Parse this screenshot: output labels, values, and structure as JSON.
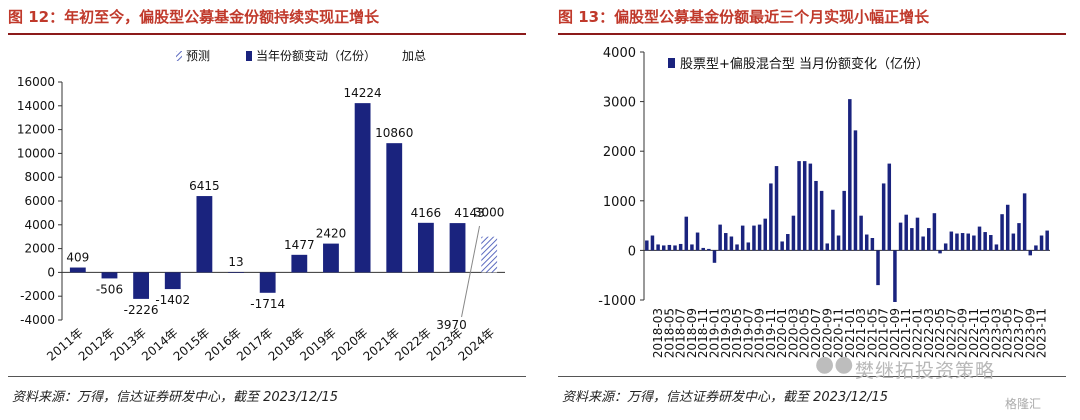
{
  "left": {
    "title": "图 12：年初至今，偏股型公募基金份额持续实现正增长",
    "source": "资料来源：万得，信达证券研发中心，截至 2023/12/15",
    "chart_data": {
      "type": "bar",
      "legend": [
        "预测",
        "当年份额变动（亿份）",
        "加总"
      ],
      "legend_position": "top",
      "categories": [
        "2011年",
        "2012年",
        "2013年",
        "2014年",
        "2015年",
        "2016年",
        "2017年",
        "2018年",
        "2019年",
        "2020年",
        "2021年",
        "2022年",
        "2023年",
        "2024年"
      ],
      "values": [
        409,
        -506,
        -2226,
        -1402,
        6415,
        13,
        -1714,
        1477,
        2420,
        14224,
        10860,
        4166,
        4143,
        3000
      ],
      "labels": [
        "409",
        "-506",
        "-2226",
        "-1402",
        "6415",
        "13",
        "-1714",
        "1477",
        "2420",
        "14224",
        "10860",
        "4166",
        "4143",
        "3000"
      ],
      "forecast_index": 13,
      "annotation": {
        "text": "3970",
        "category": "2023年"
      },
      "ylim": [
        -4000,
        16000
      ],
      "yticks": [
        -4000,
        -2000,
        0,
        2000,
        4000,
        6000,
        8000,
        10000,
        12000,
        14000,
        16000
      ],
      "grid": false,
      "colors": {
        "bar": "#1a237e",
        "forecast": "#5c6bc0"
      }
    }
  },
  "right": {
    "title": "图 13：偏股型公募基金份额最近三个月实现小幅正增长",
    "source": "资料来源：万得，信达证券研发中心，截至 2023/12/15",
    "chart_data": {
      "type": "bar",
      "legend": [
        "股票型+偏股混合型 当月份额变化（亿份）"
      ],
      "legend_position": "top-left",
      "categories": [
        "2018-01",
        "2018-02",
        "2018-03",
        "2018-04",
        "2018-05",
        "2018-06",
        "2018-07",
        "2018-08",
        "2018-09",
        "2018-10",
        "2018-11",
        "2018-12",
        "2019-01",
        "2019-02",
        "2019-03",
        "2019-04",
        "2019-05",
        "2019-06",
        "2019-07",
        "2019-08",
        "2019-09",
        "2019-10",
        "2019-11",
        "2019-12",
        "2020-01",
        "2020-02",
        "2020-03",
        "2020-04",
        "2020-05",
        "2020-06",
        "2020-07",
        "2020-08",
        "2020-09",
        "2020-10",
        "2020-11",
        "2020-12",
        "2021-01",
        "2021-02",
        "2021-03",
        "2021-04",
        "2021-05",
        "2021-06",
        "2021-07",
        "2021-08",
        "2021-09",
        "2021-10",
        "2021-11",
        "2021-12",
        "2022-01",
        "2022-02",
        "2022-03",
        "2022-04",
        "2022-05",
        "2022-06",
        "2022-07",
        "2022-08",
        "2022-09",
        "2022-10",
        "2022-11",
        "2022-12",
        "2023-01",
        "2023-02",
        "2023-03",
        "2023-04",
        "2023-05",
        "2023-06",
        "2023-07",
        "2023-08",
        "2023-09",
        "2023-10",
        "2023-11",
        "2023-12"
      ],
      "xticks": [
        "2018-03",
        "2018-05",
        "2018-07",
        "2018-09",
        "2018-11",
        "2019-01",
        "2019-03",
        "2019-05",
        "2019-07",
        "2019-09",
        "2019-11",
        "2020-01",
        "2020-03",
        "2020-05",
        "2020-07",
        "2020-09",
        "2020-11",
        "2021-01",
        "2021-03",
        "2021-05",
        "2021-07",
        "2021-09",
        "2021-11",
        "2022-01",
        "2022-03",
        "2022-05",
        "2022-07",
        "2022-09",
        "2022-11",
        "2023-01",
        "2023-03",
        "2023-05",
        "2023-07",
        "2023-09",
        "2023-11"
      ],
      "values": [
        200,
        300,
        120,
        100,
        110,
        100,
        130,
        680,
        120,
        360,
        50,
        30,
        -250,
        520,
        350,
        280,
        120,
        500,
        160,
        500,
        520,
        640,
        1350,
        1700,
        180,
        330,
        700,
        1800,
        1800,
        1750,
        1400,
        1200,
        140,
        820,
        300,
        1200,
        3050,
        2420,
        700,
        320,
        250,
        -700,
        1350,
        1750,
        -1040,
        560,
        720,
        450,
        660,
        280,
        450,
        750,
        -60,
        140,
        380,
        340,
        350,
        340,
        300,
        480,
        370,
        310,
        120,
        730,
        920,
        340,
        550,
        1150,
        -100,
        100,
        300,
        400
      ],
      "ylim": [
        -1000,
        4000
      ],
      "yticks": [
        -1000,
        0,
        1000,
        2000,
        3000,
        4000
      ],
      "grid": false,
      "colors": {
        "bar": "#1a237e"
      }
    }
  },
  "watermark": "樊继拓投资策略",
  "brand": "格隆汇"
}
